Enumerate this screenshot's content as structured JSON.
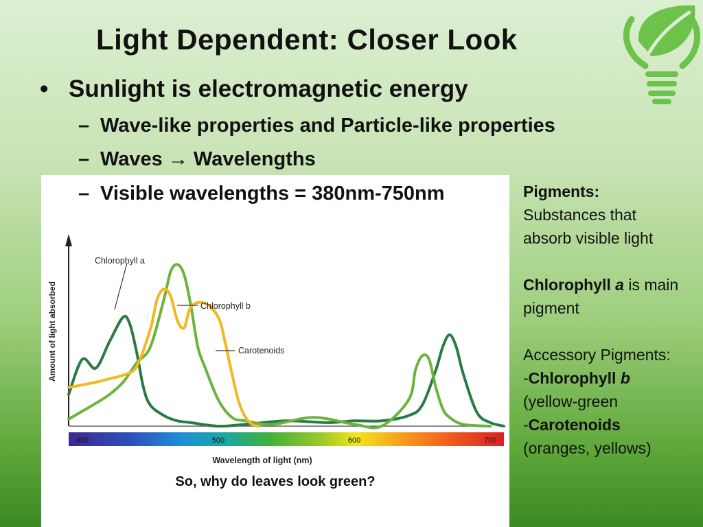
{
  "slide": {
    "title": "Light Dependent:  Closer Look",
    "bullet_main": "Sunlight is electromagnetic energy",
    "bullet_dot": "•",
    "sub_dash": "–",
    "sub1": "Wave-like properties and Particle-like properties",
    "sub2_before": "Waves ",
    "sub2_arrow": "→",
    "sub2_after": " Wavelengths",
    "sub3": "Visible wavelengths = 380nm-750nm"
  },
  "side_panel": {
    "pigments_heading": "Pigments:",
    "pigments_desc_1": "Substances that",
    "pigments_desc_2": "absorb visible light",
    "chl_a_bold": "Chlorophyll ",
    "chl_a_italic": "a",
    "chl_a_rest": " is main",
    "chl_a_rest2": "pigment",
    "accessory_heading": "Accessory Pigments:",
    "acc1_prefix": "-",
    "acc1_bold": "Chlorophyll ",
    "acc1_italic": "b",
    "acc1_desc": "(yellow-green",
    "acc2_prefix": "-",
    "acc2_bold": "Carotenoids",
    "acc2_desc": "(oranges, yellows)"
  },
  "figure": {
    "caption": "So, why do leaves look green?"
  },
  "chart_data": {
    "type": "line",
    "xlabel": "Wavelength of light (nm)",
    "ylabel": "Amount of light absorbed",
    "xlim": [
      390,
      710
    ],
    "ylim": [
      0,
      1
    ],
    "x_ticks": [
      "400",
      "500",
      "600",
      "700"
    ],
    "x_tick_values": [
      400,
      500,
      600,
      700
    ],
    "annotations": [
      "Chlorophyll a",
      "Chlorophyll b",
      "Carotenoids"
    ],
    "series": [
      {
        "name": "Chlorophyll a",
        "color": "#2a7a46",
        "x": [
          390,
          400,
          410,
          420,
          430,
          435,
          440,
          445,
          450,
          460,
          470,
          480,
          500,
          520,
          550,
          580,
          600,
          620,
          640,
          650,
          660,
          665,
          670,
          675,
          680,
          690,
          700,
          710
        ],
        "y": [
          0.18,
          0.38,
          0.33,
          0.48,
          0.62,
          0.58,
          0.42,
          0.22,
          0.12,
          0.06,
          0.03,
          0.02,
          0.0,
          0.01,
          0.03,
          0.02,
          0.03,
          0.03,
          0.06,
          0.12,
          0.32,
          0.45,
          0.52,
          0.45,
          0.3,
          0.08,
          0.02,
          0.0
        ]
      },
      {
        "name": "Chlorophyll b",
        "color": "#6ab43c",
        "x": [
          390,
          410,
          420,
          430,
          440,
          450,
          460,
          465,
          470,
          475,
          480,
          485,
          490,
          500,
          510,
          520,
          540,
          570,
          600,
          620,
          640,
          645,
          650,
          655,
          660,
          665,
          670,
          680,
          700
        ],
        "y": [
          0.04,
          0.13,
          0.18,
          0.25,
          0.36,
          0.45,
          0.72,
          0.88,
          0.92,
          0.86,
          0.68,
          0.45,
          0.34,
          0.15,
          0.05,
          0.03,
          0.01,
          0.05,
          0.01,
          0.0,
          0.15,
          0.32,
          0.4,
          0.38,
          0.22,
          0.1,
          0.05,
          0.01,
          0.0
        ]
      },
      {
        "name": "Carotenoids",
        "color": "#f2b81f",
        "x": [
          390,
          410,
          420,
          430,
          440,
          450,
          455,
          460,
          465,
          470,
          475,
          480,
          490,
          500,
          505,
          510,
          515,
          520,
          525,
          530
        ],
        "y": [
          0.22,
          0.25,
          0.27,
          0.29,
          0.34,
          0.55,
          0.72,
          0.78,
          0.74,
          0.6,
          0.56,
          0.68,
          0.7,
          0.62,
          0.48,
          0.3,
          0.14,
          0.05,
          0.01,
          0.0
        ]
      }
    ]
  }
}
